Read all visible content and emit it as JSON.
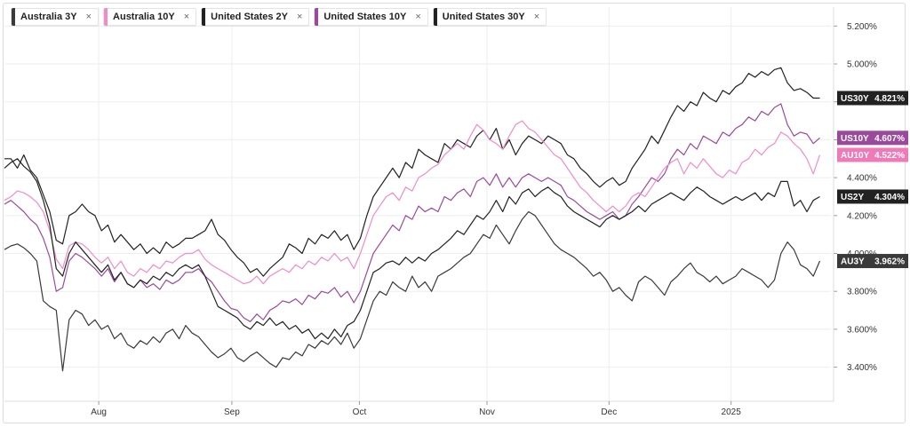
{
  "legend": [
    {
      "label": "Australia 3Y",
      "color": "#3a3a3a"
    },
    {
      "label": "Australia 10Y",
      "color": "#f28cc8"
    },
    {
      "label": "United States 2Y",
      "color": "#222222"
    },
    {
      "label": "United States 10Y",
      "color": "#9b4a9b"
    },
    {
      "label": "United States 30Y",
      "color": "#222222"
    }
  ],
  "close_glyph": "×",
  "chart_data": {
    "type": "line",
    "ylim": [
      3.22,
      5.3
    ],
    "yticks": [
      "5.200%",
      "5.000%",
      "4.800%",
      "4.600%",
      "4.400%",
      "4.200%",
      "4.000%",
      "3.800%",
      "3.600%",
      "3.400%"
    ],
    "ytick_values": [
      5.2,
      5.0,
      4.8,
      4.6,
      4.4,
      4.2,
      4.0,
      3.8,
      3.6,
      3.4
    ],
    "xticks": [
      {
        "label": "Aug",
        "x": 17
      },
      {
        "label": "Sep",
        "x": 41
      },
      {
        "label": "Oct",
        "x": 64
      },
      {
        "label": "Nov",
        "x": 87
      },
      {
        "label": "Dec",
        "x": 109
      },
      {
        "label": "2025",
        "x": 131
      }
    ],
    "x_range": [
      0,
      149
    ],
    "series": [
      {
        "name": "United States 30Y",
        "tag": "US30Y",
        "last_label": "4.821%",
        "color": "#222222",
        "tag_color": "#222222",
        "values": [
          4.5,
          4.5,
          4.45,
          4.52,
          4.44,
          4.4,
          4.31,
          4.22,
          4.07,
          4.05,
          4.2,
          4.22,
          4.26,
          4.22,
          4.2,
          4.12,
          4.15,
          4.06,
          4.1,
          4.06,
          4.02,
          4.05,
          4.0,
          4.03,
          4.0,
          4.06,
          4.03,
          4.05,
          4.08,
          4.08,
          4.1,
          4.12,
          4.18,
          4.1,
          4.07,
          4.02,
          3.98,
          3.95,
          3.9,
          3.92,
          3.88,
          3.92,
          3.95,
          3.98,
          4.05,
          4.03,
          4.0,
          4.08,
          4.05,
          4.1,
          4.08,
          4.12,
          4.07,
          4.1,
          4.02,
          4.08,
          4.2,
          4.3,
          4.35,
          4.4,
          4.45,
          4.4,
          4.48,
          4.45,
          4.55,
          4.52,
          4.5,
          4.48,
          4.58,
          4.55,
          4.6,
          4.58,
          4.56,
          4.62,
          4.65,
          4.6,
          4.66,
          4.55,
          4.6,
          4.52,
          4.58,
          4.62,
          4.6,
          4.58,
          4.62,
          4.6,
          4.58,
          4.52,
          4.5,
          4.45,
          4.42,
          4.38,
          4.35,
          4.38,
          4.4,
          4.36,
          4.38,
          4.45,
          4.5,
          4.55,
          4.62,
          4.58,
          4.65,
          4.72,
          4.78,
          4.75,
          4.8,
          4.78,
          4.85,
          4.82,
          4.8,
          4.86,
          4.84,
          4.88,
          4.9,
          4.95,
          4.93,
          4.96,
          4.94,
          4.97,
          4.98,
          4.9,
          4.86,
          4.87,
          4.85,
          4.82,
          4.82
        ]
      },
      {
        "name": "United States 10Y",
        "tag": "US10Y",
        "last_label": "4.607%",
        "color": "#9b4a9b",
        "tag_color": "#9b4a9b",
        "values": [
          4.26,
          4.28,
          4.25,
          4.22,
          4.18,
          4.15,
          4.08,
          3.98,
          3.8,
          3.82,
          3.96,
          4.0,
          3.98,
          3.95,
          3.92,
          3.88,
          3.92,
          3.85,
          3.9,
          3.84,
          3.82,
          3.86,
          3.82,
          3.84,
          3.81,
          3.86,
          3.84,
          3.86,
          3.9,
          3.9,
          3.92,
          3.88,
          3.85,
          3.8,
          3.75,
          3.71,
          3.7,
          3.66,
          3.64,
          3.68,
          3.65,
          3.7,
          3.72,
          3.75,
          3.74,
          3.76,
          3.73,
          3.78,
          3.76,
          3.8,
          3.79,
          3.82,
          3.77,
          3.8,
          3.74,
          3.8,
          3.9,
          4.0,
          4.05,
          4.1,
          4.15,
          4.12,
          4.2,
          4.18,
          4.25,
          4.22,
          4.24,
          4.22,
          4.3,
          4.28,
          4.32,
          4.34,
          4.3,
          4.38,
          4.4,
          4.36,
          4.42,
          4.35,
          4.4,
          4.35,
          4.4,
          4.42,
          4.4,
          4.38,
          4.4,
          4.38,
          4.36,
          4.3,
          4.28,
          4.25,
          4.22,
          4.2,
          4.18,
          4.2,
          4.22,
          4.18,
          4.2,
          4.26,
          4.3,
          4.35,
          4.4,
          4.38,
          4.42,
          4.5,
          4.55,
          4.52,
          4.58,
          4.55,
          4.62,
          4.6,
          4.58,
          4.64,
          4.62,
          4.66,
          4.68,
          4.72,
          4.7,
          4.75,
          4.73,
          4.77,
          4.79,
          4.68,
          4.62,
          4.64,
          4.63,
          4.58,
          4.61
        ]
      },
      {
        "name": "Australia 10Y",
        "tag": "AU10Y",
        "last_label": "4.522%",
        "color": "#f28cc8",
        "tag_color": "#f07ab8",
        "values": [
          4.28,
          4.3,
          4.33,
          4.32,
          4.3,
          4.27,
          4.22,
          4.12,
          3.97,
          3.92,
          4.04,
          4.06,
          4.05,
          4.02,
          3.98,
          3.95,
          3.98,
          3.92,
          3.96,
          3.9,
          3.88,
          3.92,
          3.9,
          3.94,
          3.92,
          3.96,
          3.95,
          3.98,
          4.0,
          4.0,
          4.02,
          3.97,
          3.94,
          3.92,
          3.9,
          3.88,
          3.86,
          3.84,
          3.85,
          3.88,
          3.84,
          3.88,
          3.9,
          3.92,
          3.9,
          3.94,
          3.92,
          3.96,
          3.94,
          3.98,
          3.96,
          4.0,
          3.96,
          3.98,
          3.92,
          4.0,
          4.1,
          4.2,
          4.25,
          4.3,
          4.32,
          4.28,
          4.35,
          4.33,
          4.4,
          4.42,
          4.45,
          4.47,
          4.52,
          4.55,
          4.58,
          4.55,
          4.62,
          4.68,
          4.65,
          4.6,
          4.58,
          4.55,
          4.62,
          4.68,
          4.7,
          4.66,
          4.64,
          4.6,
          4.56,
          4.52,
          4.5,
          4.45,
          4.4,
          4.35,
          4.32,
          4.28,
          4.25,
          4.22,
          4.25,
          4.22,
          4.25,
          4.3,
          4.32,
          4.3,
          4.35,
          4.4,
          4.45,
          4.48,
          4.5,
          4.42,
          4.48,
          4.45,
          4.5,
          4.46,
          4.42,
          4.4,
          4.44,
          4.42,
          4.48,
          4.5,
          4.55,
          4.52,
          4.56,
          4.58,
          4.64,
          4.62,
          4.58,
          4.55,
          4.5,
          4.42,
          4.52
        ]
      },
      {
        "name": "United States 2Y",
        "tag": "US2Y",
        "last_label": "4.304%",
        "color": "#222222",
        "tag_color": "#222222",
        "values": [
          4.45,
          4.48,
          4.5,
          4.46,
          4.43,
          4.38,
          4.28,
          4.15,
          3.92,
          3.88,
          4.0,
          4.06,
          4.02,
          3.98,
          3.94,
          3.9,
          3.94,
          3.86,
          3.9,
          3.84,
          3.82,
          3.86,
          3.84,
          3.88,
          3.86,
          3.9,
          3.88,
          3.92,
          3.94,
          3.92,
          3.94,
          3.88,
          3.8,
          3.72,
          3.7,
          3.68,
          3.66,
          3.62,
          3.6,
          3.64,
          3.62,
          3.66,
          3.62,
          3.64,
          3.6,
          3.62,
          3.58,
          3.6,
          3.55,
          3.58,
          3.55,
          3.6,
          3.56,
          3.62,
          3.64,
          3.7,
          3.8,
          3.9,
          3.92,
          3.95,
          3.96,
          3.94,
          3.98,
          3.95,
          3.98,
          3.96,
          4.0,
          4.02,
          4.05,
          4.08,
          4.12,
          4.1,
          4.15,
          4.2,
          4.18,
          4.22,
          4.28,
          4.22,
          4.3,
          4.26,
          4.32,
          4.34,
          4.3,
          4.33,
          4.35,
          4.32,
          4.3,
          4.25,
          4.22,
          4.2,
          4.18,
          4.16,
          4.14,
          4.18,
          4.2,
          4.18,
          4.2,
          4.22,
          4.25,
          4.22,
          4.26,
          4.28,
          4.3,
          4.32,
          4.3,
          4.28,
          4.32,
          4.35,
          4.33,
          4.3,
          4.28,
          4.26,
          4.28,
          4.3,
          4.28,
          4.3,
          4.32,
          4.28,
          4.32,
          4.3,
          4.38,
          4.38,
          4.25,
          4.28,
          4.22,
          4.28,
          4.3
        ]
      },
      {
        "name": "Australia 3Y",
        "tag": "AU3Y",
        "last_label": "3.962%",
        "color": "#3a3a3a",
        "tag_color": "#3a3a3a",
        "values": [
          4.02,
          4.04,
          4.05,
          4.03,
          4.0,
          3.96,
          3.75,
          3.72,
          3.7,
          3.38,
          3.65,
          3.7,
          3.68,
          3.62,
          3.65,
          3.6,
          3.62,
          3.55,
          3.58,
          3.52,
          3.5,
          3.54,
          3.52,
          3.56,
          3.53,
          3.58,
          3.6,
          3.55,
          3.62,
          3.58,
          3.56,
          3.52,
          3.48,
          3.45,
          3.47,
          3.5,
          3.45,
          3.43,
          3.46,
          3.48,
          3.45,
          3.42,
          3.4,
          3.45,
          3.44,
          3.48,
          3.46,
          3.52,
          3.5,
          3.54,
          3.52,
          3.56,
          3.52,
          3.58,
          3.5,
          3.55,
          3.65,
          3.75,
          3.8,
          3.78,
          3.85,
          3.82,
          3.8,
          3.88,
          3.82,
          3.85,
          3.8,
          3.88,
          3.9,
          3.92,
          3.95,
          3.98,
          4.0,
          4.05,
          4.1,
          4.08,
          4.15,
          4.1,
          4.05,
          4.12,
          4.18,
          4.22,
          4.2,
          4.15,
          4.1,
          4.05,
          4.02,
          4.0,
          3.98,
          3.95,
          3.92,
          3.88,
          3.9,
          3.86,
          3.8,
          3.82,
          3.78,
          3.75,
          3.85,
          3.88,
          3.86,
          3.82,
          3.78,
          3.85,
          3.88,
          3.92,
          3.95,
          3.9,
          3.88,
          3.85,
          3.88,
          3.84,
          3.86,
          3.88,
          3.92,
          3.9,
          3.88,
          3.86,
          3.82,
          3.86,
          4.0,
          4.06,
          4.02,
          3.94,
          3.92,
          3.88,
          3.96
        ]
      }
    ]
  }
}
